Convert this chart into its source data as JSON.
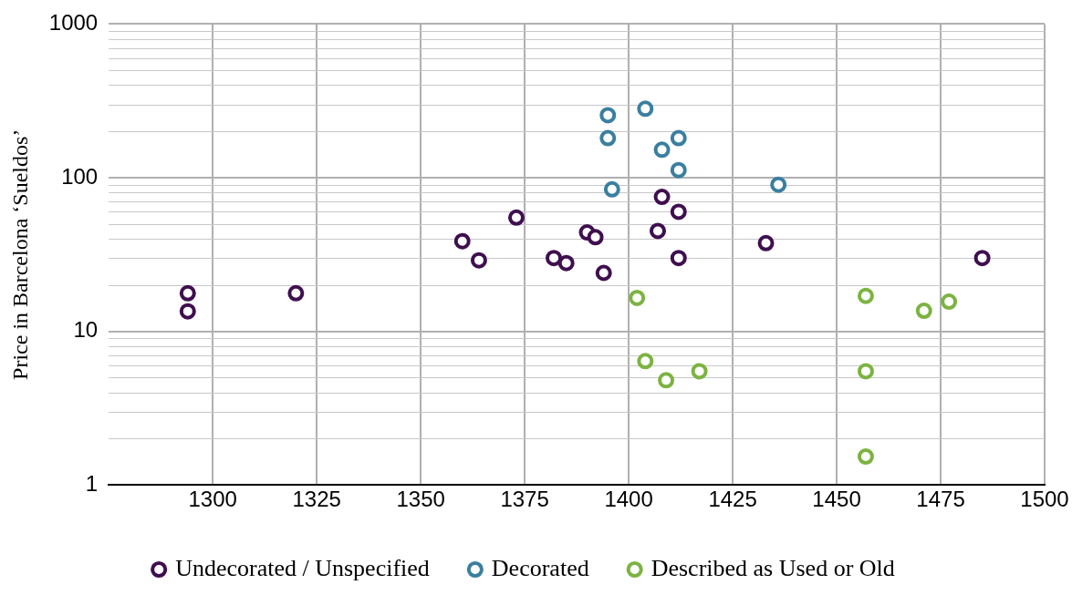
{
  "chart_data": {
    "type": "scatter",
    "ylabel": "Price in Barcelona ‘Sueldos’",
    "xlim": [
      1275,
      1500
    ],
    "xticks": [
      1300,
      1325,
      1350,
      1375,
      1400,
      1425,
      1450,
      1475,
      1500
    ],
    "ylim": [
      1,
      1000
    ],
    "yticks": [
      1,
      10,
      100,
      1000
    ],
    "log": "y",
    "grid": true,
    "legend": "bottom",
    "marker": "circle",
    "series": [
      {
        "name": "Undecorated / Unspecified",
        "color": "#3f0f4f",
        "x": [
          1294,
          1294,
          1320,
          1360,
          1364,
          1373,
          1382,
          1385,
          1390,
          1392,
          1394,
          1408,
          1407,
          1412,
          1412,
          1433,
          1485
        ],
        "values": [
          17.7,
          13.5,
          17.7,
          38.6,
          29,
          55,
          30,
          27.8,
          44,
          41,
          24,
          75,
          45,
          60,
          30,
          37.5,
          30
        ]
      },
      {
        "name": "Decorated",
        "color": "#3a7fa0",
        "x": [
          1395,
          1395,
          1396,
          1404,
          1408,
          1412,
          1412,
          1436
        ],
        "values": [
          255,
          181,
          84,
          281,
          152,
          181,
          112,
          90
        ]
      },
      {
        "name": "Described as Used or Old",
        "color": "#7cb342",
        "x": [
          1402,
          1404,
          1409,
          1417,
          1457,
          1457,
          1457,
          1471,
          1477
        ],
        "values": [
          16.5,
          6.4,
          4.8,
          5.5,
          17,
          5.5,
          1.53,
          13.6,
          15.6
        ]
      }
    ]
  }
}
